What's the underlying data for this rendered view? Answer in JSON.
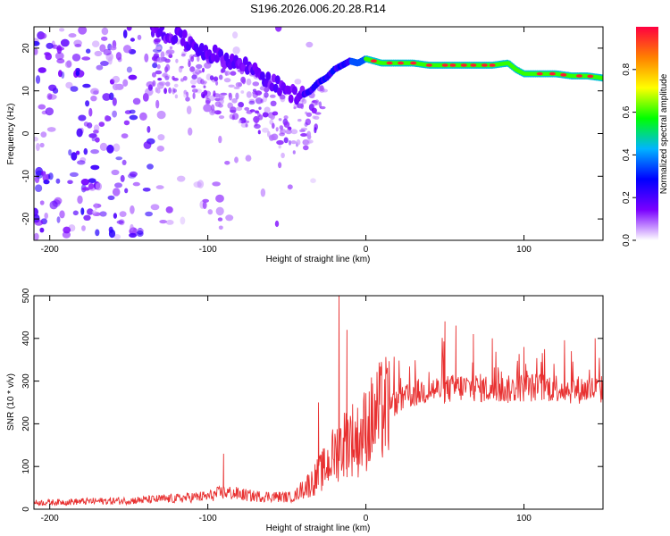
{
  "figure": {
    "title": "S196.2026.006.20.28.R14"
  },
  "chart_data": [
    {
      "type": "heatmap",
      "name": "spectrogram",
      "xlabel": "Height of straight line (km)",
      "ylabel": "Frequency (Hz)",
      "xlim": [
        -210,
        150
      ],
      "ylim": [
        -25,
        25
      ],
      "x_ticks": [
        -200,
        -100,
        0,
        100
      ],
      "y_ticks": [
        -20,
        -10,
        0,
        10,
        20
      ],
      "ridge": {
        "x": [
          -130,
          -115,
          -100,
          -85,
          -70,
          -60,
          -50,
          -45,
          -40,
          -35,
          -30,
          -25,
          -20,
          -15,
          -10,
          -5,
          0,
          10,
          20,
          30,
          40,
          50,
          60,
          70,
          80,
          90,
          95,
          100,
          110,
          120,
          130,
          140,
          150
        ],
        "y": [
          24,
          22,
          19,
          17,
          15,
          12,
          10,
          9,
          9,
          10,
          12,
          13,
          15,
          16,
          17,
          16.5,
          17.5,
          16.5,
          16.5,
          16.5,
          16,
          16,
          16,
          16,
          16,
          16.5,
          15,
          14,
          14,
          14,
          13.5,
          13.5,
          13
        ]
      },
      "colorbar": {
        "label": "Normalized spectral amplitude",
        "range": [
          0,
          1
        ],
        "ticks": [
          0.0,
          0.2,
          0.4,
          0.6,
          0.8
        ],
        "colormap": [
          "#ffffff",
          "#7a00ff",
          "#0000ff",
          "#00b4ff",
          "#00ff00",
          "#ffff00",
          "#ff8000",
          "#ff0040"
        ]
      }
    },
    {
      "type": "line",
      "name": "snr",
      "xlabel": "Height of straight line (km)",
      "ylabel": "SNR (10 * v/v)",
      "xlim": [
        -210,
        150
      ],
      "ylim": [
        0,
        500
      ],
      "x_ticks": [
        -200,
        -100,
        0,
        100
      ],
      "y_ticks": [
        0,
        100,
        200,
        300,
        400,
        500
      ],
      "color": "#e83030",
      "series": [
        {
          "envelope_x": [
            -210,
            -180,
            -150,
            -120,
            -110,
            -100,
            -90,
            -80,
            -70,
            -60,
            -50,
            -45,
            -40,
            -35,
            -30,
            -25,
            -20,
            -15,
            -10,
            -5,
            0,
            10,
            20,
            30,
            40,
            50,
            60,
            70,
            80,
            90,
            100,
            110,
            120,
            130,
            140,
            150
          ],
          "envelope_y": [
            15,
            18,
            20,
            25,
            28,
            30,
            40,
            35,
            30,
            30,
            28,
            30,
            50,
            60,
            80,
            100,
            130,
            150,
            170,
            160,
            190,
            230,
            250,
            270,
            280,
            280,
            285,
            285,
            280,
            280,
            285,
            285,
            285,
            280,
            280,
            280
          ],
          "spikes": [
            {
              "x": -90,
              "y": 130
            },
            {
              "x": -30,
              "y": 250
            },
            {
              "x": -17,
              "y": 500
            },
            {
              "x": -12,
              "y": 420
            },
            {
              "x": 10,
              "y": 330
            },
            {
              "x": 50,
              "y": 440
            },
            {
              "x": 57,
              "y": 430
            },
            {
              "x": 68,
              "y": 410
            },
            {
              "x": 80,
              "y": 400
            },
            {
              "x": 100,
              "y": 380
            },
            {
              "x": 130,
              "y": 370
            },
            {
              "x": 145,
              "y": 400
            }
          ]
        }
      ]
    }
  ]
}
